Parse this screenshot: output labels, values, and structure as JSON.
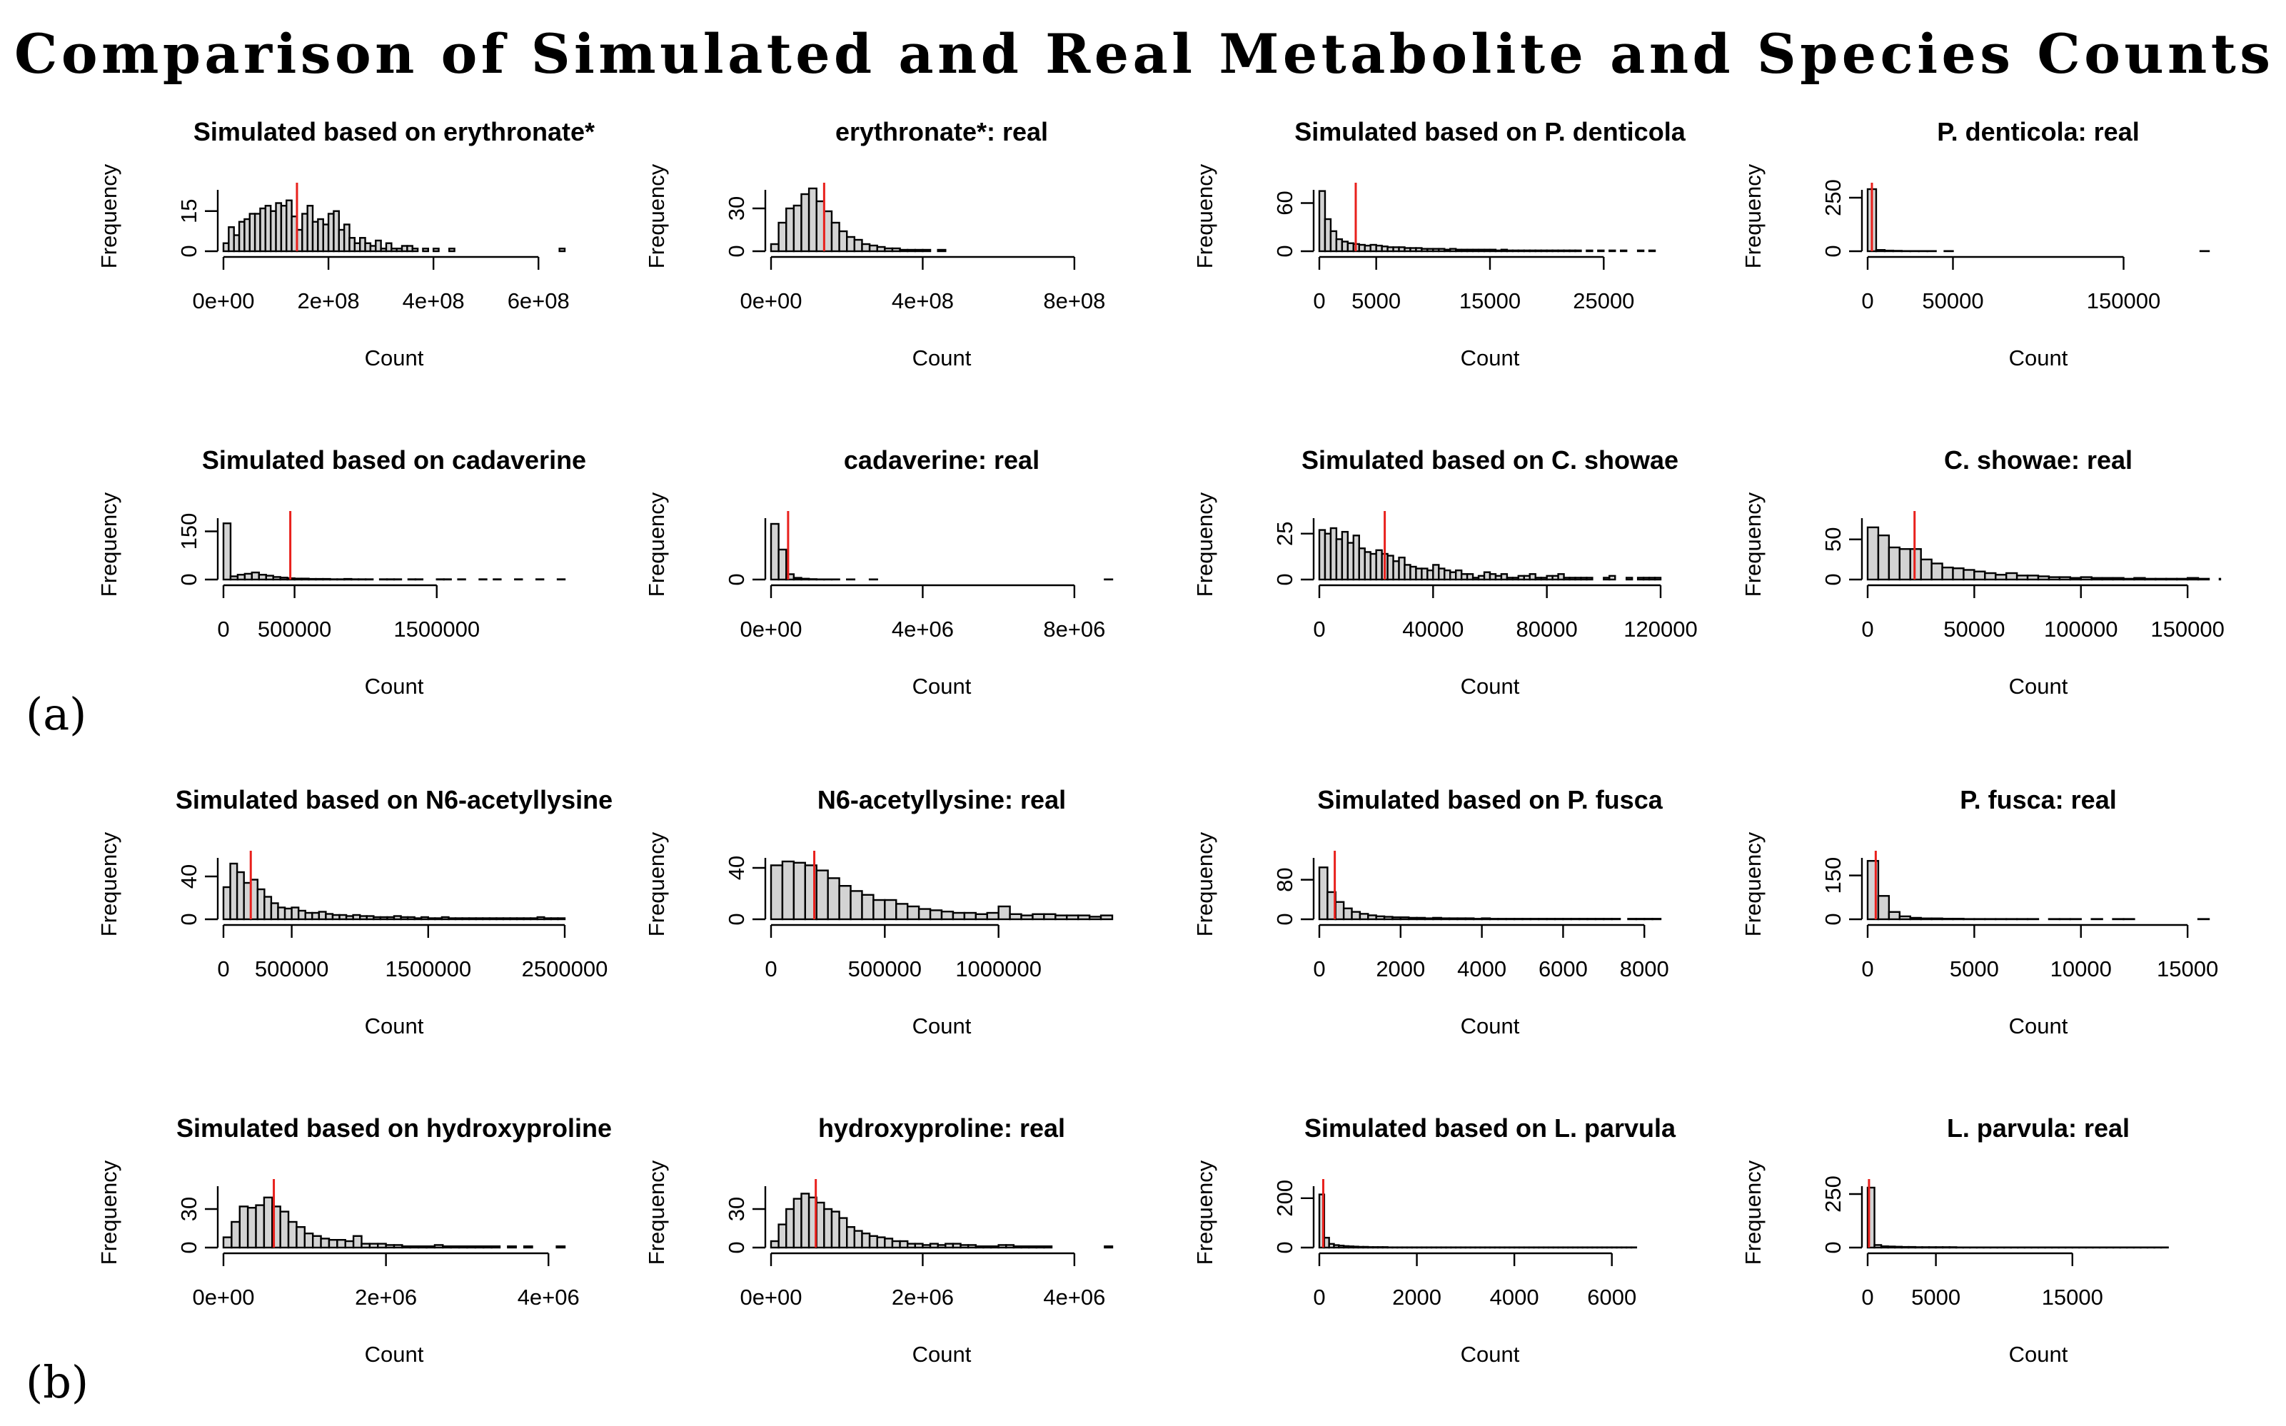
{
  "title": "Comparison of Simulated and Real Metabolite and Species Counts",
  "panel_labels": [
    "(a)",
    "(b)"
  ],
  "style": {
    "bar_fill": "#d3d3d3",
    "bar_stroke": "#000000",
    "marker_color": "#e8201c"
  },
  "chart_data": [
    {
      "type": "bar",
      "title": "Simulated based on erythronate*",
      "xlabel": "Count",
      "ylabel": "Frequency",
      "xlim": [
        0,
        650000000
      ],
      "xticks": [
        0,
        200000000,
        400000000,
        600000000
      ],
      "xtick_labels": [
        "0e+00",
        "2e+08",
        "4e+08",
        "6e+08"
      ],
      "ylim": [
        0,
        24
      ],
      "yticks": [
        0,
        15
      ],
      "ytick_labels": [
        "0",
        "15"
      ],
      "bin_width": 10000000,
      "counts": [
        3,
        9,
        6,
        11,
        12,
        14,
        14,
        16,
        17,
        15,
        18,
        17,
        19,
        13,
        8,
        14,
        17,
        11,
        12,
        10,
        14,
        15,
        8,
        10,
        5,
        3,
        5,
        3,
        2,
        4,
        1,
        3,
        1,
        1,
        2,
        2,
        1,
        0,
        1,
        0,
        1,
        0,
        0,
        1,
        0,
        0,
        0,
        0,
        0,
        0,
        0,
        0,
        0,
        0,
        0,
        0,
        0,
        0,
        0,
        0,
        0,
        0,
        0,
        0,
        1
      ],
      "marker": 140000000
    },
    {
      "type": "bar",
      "title": "erythronate*: real",
      "xlabel": "Count",
      "ylabel": "Frequency",
      "xlim": [
        0,
        900000000
      ],
      "xticks": [
        0,
        400000000,
        800000000
      ],
      "xtick_labels": [
        "0e+00",
        "4e+08",
        "8e+08"
      ],
      "ylim": [
        0,
        45
      ],
      "yticks": [
        0,
        30
      ],
      "ytick_labels": [
        "0",
        "30"
      ],
      "bin_width": 20000000,
      "counts": [
        5,
        20,
        30,
        32,
        40,
        44,
        35,
        28,
        20,
        14,
        10,
        8,
        5,
        4,
        3,
        2,
        2,
        1,
        1,
        1,
        1,
        0,
        1,
        0,
        0,
        0,
        0,
        0,
        0,
        0,
        0,
        0,
        0,
        0,
        0,
        0,
        0,
        0,
        0,
        0,
        0,
        0,
        0,
        0,
        0
      ],
      "marker": 140000000
    },
    {
      "type": "bar",
      "title": "Simulated based on P. denticola",
      "xlabel": "Count",
      "ylabel": "Frequency",
      "xlim": [
        0,
        30000
      ],
      "xticks": [
        0,
        5000,
        15000,
        25000
      ],
      "xtick_labels": [
        "0",
        "5000",
        "15000",
        "25000"
      ],
      "ylim": [
        0,
        80
      ],
      "yticks": [
        0,
        60
      ],
      "ytick_labels": [
        "0",
        "60"
      ],
      "bin_width": 500,
      "counts": [
        75,
        40,
        25,
        15,
        12,
        10,
        9,
        8,
        7,
        8,
        7,
        6,
        5,
        5,
        5,
        4,
        4,
        4,
        3,
        3,
        3,
        3,
        2,
        3,
        2,
        2,
        2,
        2,
        2,
        2,
        2,
        1,
        2,
        1,
        1,
        1,
        1,
        1,
        1,
        1,
        1,
        1,
        1,
        1,
        1,
        1,
        0,
        1,
        0,
        1,
        0,
        1,
        0,
        1,
        0,
        0,
        1,
        0,
        1,
        0
      ],
      "marker": 3200
    },
    {
      "type": "bar",
      "title": "P. denticola: real",
      "xlabel": "Count",
      "ylabel": "Frequency",
      "xlim": [
        0,
        200000
      ],
      "xticks": [
        0,
        50000,
        150000
      ],
      "xtick_labels": [
        "0",
        "50000",
        "150000"
      ],
      "ylim": [
        0,
        300
      ],
      "yticks": [
        0,
        250
      ],
      "ytick_labels": [
        "0",
        "250"
      ],
      "bin_width": 5000,
      "counts": [
        290,
        6,
        3,
        2,
        1,
        1,
        1,
        1,
        0,
        1,
        0,
        0,
        0,
        0,
        0,
        0,
        0,
        0,
        0,
        0,
        0,
        0,
        0,
        0,
        0,
        0,
        0,
        0,
        0,
        0,
        0,
        0,
        0,
        0,
        0,
        0,
        0,
        0,
        0,
        1
      ],
      "marker": 2500
    },
    {
      "type": "bar",
      "title": "Simulated based on cadaverine",
      "xlabel": "Count",
      "ylabel": "Frequency",
      "xlim": [
        0,
        2400000
      ],
      "xticks": [
        0,
        500000,
        1500000
      ],
      "xtick_labels": [
        "0",
        "500000",
        "1500000"
      ],
      "ylim": [
        0,
        200
      ],
      "yticks": [
        0,
        150
      ],
      "ytick_labels": [
        "0",
        "150"
      ],
      "bin_width": 50000,
      "counts": [
        175,
        10,
        15,
        18,
        22,
        15,
        12,
        8,
        6,
        4,
        3,
        3,
        2,
        2,
        2,
        1,
        1,
        2,
        1,
        1,
        1,
        0,
        1,
        1,
        1,
        0,
        1,
        1,
        0,
        0,
        1,
        1,
        0,
        1,
        0,
        0,
        1,
        0,
        1,
        0,
        0,
        1,
        0,
        0,
        1,
        0,
        0,
        1
      ],
      "marker": 470000
    },
    {
      "type": "bar",
      "title": "cadaverine: real",
      "xlabel": "Count",
      "ylabel": "Frequency",
      "xlim": [
        0,
        9000000
      ],
      "xticks": [
        0,
        4000000,
        8000000
      ],
      "xtick_labels": [
        "0e+00",
        "4e+06",
        "8e+06"
      ],
      "ylim": [
        0,
        300
      ],
      "yticks": [
        0
      ],
      "ytick_labels": [
        "0"
      ],
      "bin_width": 200000,
      "counts": [
        260,
        140,
        25,
        8,
        4,
        2,
        1,
        1,
        1,
        0,
        1,
        0,
        0,
        1,
        0,
        0,
        0,
        0,
        0,
        0,
        0,
        0,
        0,
        0,
        0,
        0,
        0,
        0,
        0,
        0,
        0,
        0,
        0,
        0,
        0,
        0,
        0,
        0,
        0,
        0,
        0,
        0,
        0,
        0,
        1
      ],
      "marker": 450000
    },
    {
      "type": "bar",
      "title": "Simulated based on C. showae",
      "xlabel": "Count",
      "ylabel": "Frequency",
      "xlim": [
        0,
        120000
      ],
      "xticks": [
        0,
        40000,
        80000,
        120000
      ],
      "xtick_labels": [
        "0",
        "40000",
        "80000",
        "120000"
      ],
      "ylim": [
        0,
        35
      ],
      "yticks": [
        0,
        25
      ],
      "ytick_labels": [
        "0",
        "25"
      ],
      "bin_width": 2000,
      "counts": [
        27,
        25,
        28,
        22,
        26,
        20,
        24,
        17,
        15,
        14,
        16,
        14,
        13,
        10,
        12,
        8,
        7,
        6,
        6,
        5,
        8,
        6,
        5,
        4,
        5,
        3,
        3,
        1,
        2,
        4,
        3,
        2,
        3,
        1,
        1,
        2,
        2,
        3,
        1,
        1,
        2,
        2,
        3,
        1,
        1,
        1,
        1,
        1,
        0,
        0,
        1,
        2,
        0,
        0,
        1,
        0,
        1,
        1,
        1,
        1
      ],
      "marker": 23000
    },
    {
      "type": "bar",
      "title": "C. showae: real",
      "xlabel": "Count",
      "ylabel": "Frequency",
      "xlim": [
        0,
        160000
      ],
      "xticks": [
        0,
        50000,
        100000,
        150000
      ],
      "xtick_labels": [
        "0",
        "50000",
        "100000",
        "150000"
      ],
      "ylim": [
        0,
        80
      ],
      "yticks": [
        0,
        50
      ],
      "ytick_labels": [
        "0",
        "50"
      ],
      "bin_width": 5000,
      "counts": [
        65,
        55,
        40,
        38,
        38,
        25,
        20,
        15,
        14,
        12,
        10,
        8,
        6,
        8,
        5,
        5,
        4,
        3,
        3,
        2,
        3,
        2,
        2,
        2,
        1,
        2,
        1,
        1,
        1,
        1,
        2,
        1,
        0,
        1
      ],
      "marker": 22000
    },
    {
      "type": "bar",
      "title": "Simulated based on N6-acetyllysine",
      "xlabel": "Count",
      "ylabel": "Frequency",
      "xlim": [
        0,
        2500000
      ],
      "xticks": [
        0,
        500000,
        1500000,
        2500000
      ],
      "xtick_labels": [
        "0",
        "500000",
        "1500000",
        "2500000"
      ],
      "ylim": [
        0,
        60
      ],
      "yticks": [
        0,
        40
      ],
      "ytick_labels": [
        "0",
        "40"
      ],
      "bin_width": 50000,
      "counts": [
        30,
        52,
        44,
        34,
        37,
        28,
        21,
        15,
        11,
        10,
        11,
        8,
        6,
        6,
        7,
        5,
        4,
        4,
        3,
        4,
        3,
        3,
        2,
        2,
        2,
        3,
        2,
        2,
        1,
        2,
        1,
        1,
        2,
        1,
        1,
        1,
        1,
        1,
        1,
        1,
        1,
        1,
        1,
        1,
        1,
        1,
        2,
        1,
        1,
        1
      ],
      "marker": 200000
    },
    {
      "type": "bar",
      "title": "N6-acetyllysine: real",
      "xlabel": "Count",
      "ylabel": "Frequency",
      "xlim": [
        0,
        1500000
      ],
      "xticks": [
        0,
        500000,
        1000000
      ],
      "xtick_labels": [
        "0",
        "500000",
        "1000000"
      ],
      "ylim": [
        0,
        50
      ],
      "yticks": [
        0,
        40
      ],
      "ytick_labels": [
        "0",
        "40"
      ],
      "bin_width": 50000,
      "counts": [
        42,
        45,
        44,
        42,
        38,
        32,
        26,
        22,
        19,
        15,
        15,
        12,
        10,
        8,
        7,
        6,
        5,
        5,
        4,
        5,
        10,
        4,
        3,
        4,
        4,
        3,
        3,
        3,
        2,
        3
      ],
      "marker": 190000
    },
    {
      "type": "bar",
      "title": "Simulated based on P. fusca",
      "xlabel": "Count",
      "ylabel": "Frequency",
      "xlim": [
        0,
        8400
      ],
      "xticks": [
        0,
        2000,
        4000,
        6000,
        8000
      ],
      "xtick_labels": [
        "0",
        "2000",
        "4000",
        "6000",
        "8000"
      ],
      "ylim": [
        0,
        130
      ],
      "yticks": [
        0,
        80
      ],
      "ytick_labels": [
        "0",
        "80"
      ],
      "bin_width": 200,
      "counts": [
        105,
        55,
        35,
        22,
        15,
        11,
        8,
        6,
        5,
        4,
        4,
        3,
        3,
        2,
        3,
        2,
        2,
        2,
        2,
        1,
        2,
        1,
        1,
        1,
        1,
        1,
        1,
        1,
        1,
        1,
        1,
        1,
        1,
        1,
        1,
        1,
        1,
        0,
        1,
        1,
        1,
        1
      ],
      "marker": 380
    },
    {
      "type": "bar",
      "title": "P. fusca: real",
      "xlabel": "Count",
      "ylabel": "Frequency",
      "xlim": [
        0,
        16000
      ],
      "xticks": [
        0,
        5000,
        10000,
        15000
      ],
      "xtick_labels": [
        "0",
        "5000",
        "10000",
        "15000"
      ],
      "ylim": [
        0,
        220
      ],
      "yticks": [
        0,
        150
      ],
      "ytick_labels": [
        "0",
        "150"
      ],
      "bin_width": 500,
      "counts": [
        200,
        80,
        25,
        10,
        5,
        3,
        3,
        2,
        2,
        1,
        1,
        1,
        1,
        1,
        1,
        1,
        0,
        1,
        1,
        1,
        0,
        1,
        0,
        1,
        1,
        0,
        0,
        0,
        0,
        0,
        0,
        1
      ],
      "marker": 380
    },
    {
      "type": "bar",
      "title": "Simulated based on hydroxyproline",
      "xlabel": "Count",
      "ylabel": "Frequency",
      "xlim": [
        0,
        4200000
      ],
      "xticks": [
        0,
        2000000,
        4000000
      ],
      "xtick_labels": [
        "0e+00",
        "2e+06",
        "4e+06"
      ],
      "ylim": [
        0,
        50
      ],
      "yticks": [
        0,
        30
      ],
      "ytick_labels": [
        "0",
        "30"
      ],
      "bin_width": 100000,
      "counts": [
        8,
        20,
        32,
        31,
        33,
        39,
        32,
        28,
        20,
        16,
        11,
        9,
        7,
        6,
        6,
        5,
        9,
        3,
        3,
        3,
        2,
        2,
        1,
        1,
        1,
        1,
        2,
        1,
        1,
        1,
        1,
        1,
        1,
        1,
        0,
        1,
        0,
        1,
        0,
        0,
        0,
        1
      ],
      "marker": 620000
    },
    {
      "type": "bar",
      "title": "hydroxyproline: real",
      "xlabel": "Count",
      "ylabel": "Frequency",
      "xlim": [
        0,
        4500000
      ],
      "xticks": [
        0,
        2000000,
        4000000
      ],
      "xtick_labels": [
        "0e+00",
        "2e+06",
        "4e+06"
      ],
      "ylim": [
        0,
        50
      ],
      "yticks": [
        0,
        30
      ],
      "ytick_labels": [
        "0",
        "30"
      ],
      "bin_width": 100000,
      "counts": [
        5,
        18,
        30,
        38,
        42,
        39,
        35,
        30,
        28,
        23,
        16,
        13,
        11,
        9,
        8,
        7,
        5,
        5,
        3,
        3,
        2,
        3,
        2,
        3,
        3,
        2,
        2,
        1,
        1,
        1,
        2,
        2,
        1,
        1,
        1,
        1,
        1,
        0,
        0,
        0,
        0,
        0,
        0,
        0,
        1
      ],
      "marker": 590000
    },
    {
      "type": "bar",
      "title": "Simulated based on L. parvula",
      "xlabel": "Count",
      "ylabel": "Frequency",
      "xlim": [
        0,
        7000
      ],
      "xticks": [
        0,
        2000,
        4000,
        6000
      ],
      "xtick_labels": [
        "0",
        "2000",
        "4000",
        "6000"
      ],
      "ylim": [
        0,
        260
      ],
      "yticks": [
        0,
        200
      ],
      "ytick_labels": [
        "0",
        "200"
      ],
      "bin_width": 100,
      "counts": [
        215,
        40,
        15,
        10,
        8,
        6,
        5,
        4,
        3,
        3,
        2,
        2,
        2,
        2,
        1,
        1,
        1,
        1,
        1,
        1,
        1,
        1,
        1,
        1,
        1,
        1,
        1,
        1,
        1,
        1,
        1,
        1,
        1,
        1,
        1,
        1,
        1,
        1,
        1,
        1,
        1,
        1,
        1,
        1,
        1,
        1,
        1,
        1,
        1,
        1,
        1,
        1,
        1,
        1,
        1,
        1,
        1,
        1,
        1,
        1,
        1,
        1,
        1,
        1,
        1
      ],
      "marker": 80
    },
    {
      "type": "bar",
      "title": "L. parvula: real",
      "xlabel": "Count",
      "ylabel": "Frequency",
      "xlim": [
        0,
        25000
      ],
      "xticks": [
        0,
        5000,
        15000
      ],
      "xtick_labels": [
        "0",
        "5000",
        "15000"
      ],
      "ylim": [
        0,
        300
      ],
      "yticks": [
        0,
        250
      ],
      "ytick_labels": [
        "0",
        "250"
      ],
      "bin_width": 500,
      "counts": [
        280,
        12,
        6,
        5,
        4,
        3,
        3,
        2,
        2,
        2,
        2,
        2,
        2,
        1,
        1,
        1,
        1,
        1,
        1,
        1,
        1,
        1,
        1,
        1,
        1,
        1,
        1,
        1,
        1,
        1,
        1,
        1,
        1,
        1,
        1,
        1,
        1,
        1,
        1,
        1,
        1,
        1,
        1,
        1
      ],
      "marker": 100
    }
  ]
}
